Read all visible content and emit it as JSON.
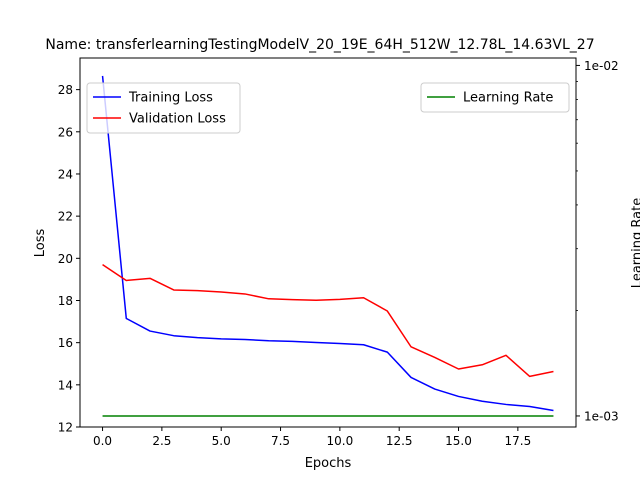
{
  "chart_data": {
    "type": "line",
    "title": "Name: transferlearningTestingModelV_20_19E_64H_512W_12.78L_14.63VL_27",
    "xlabel": "Epochs",
    "ylabel": "Loss",
    "y2label": "Learning Rate",
    "x": [
      0,
      1,
      2,
      3,
      4,
      5,
      6,
      7,
      8,
      9,
      10,
      11,
      12,
      13,
      14,
      15,
      16,
      17,
      18,
      19
    ],
    "xlim": [
      -0.95,
      19.95
    ],
    "ylim": [
      12.0,
      29.5
    ],
    "xticks": [
      0,
      2.5,
      5,
      7.5,
      10,
      12.5,
      15,
      17.5
    ],
    "xtick_labels": [
      "0.0",
      "2.5",
      "5.0",
      "7.5",
      "10.0",
      "12.5",
      "15.0",
      "17.5"
    ],
    "yticks": [
      12,
      14,
      16,
      18,
      20,
      22,
      24,
      26,
      28
    ],
    "ytick_labels": [
      "12",
      "14",
      "16",
      "18",
      "20",
      "22",
      "24",
      "26",
      "28"
    ],
    "y2_scale": "log",
    "y2lim": [
      0.00093,
      0.0105
    ],
    "y2ticks": [
      0.001,
      0.01
    ],
    "y2tick_labels": [
      "1e-03",
      "1e-02"
    ],
    "grid": false,
    "series": [
      {
        "name": "Training Loss",
        "color": "#0000ff",
        "axis": "left",
        "values": [
          28.65,
          17.15,
          16.55,
          16.33,
          16.24,
          16.18,
          16.15,
          16.09,
          16.06,
          16.01,
          15.96,
          15.9,
          15.55,
          14.35,
          13.8,
          13.45,
          13.22,
          13.07,
          12.97,
          12.78
        ]
      },
      {
        "name": "Validation Loss",
        "color": "#ff0000",
        "axis": "left",
        "values": [
          19.7,
          18.95,
          19.05,
          18.5,
          18.47,
          18.4,
          18.31,
          18.08,
          18.04,
          18.01,
          18.05,
          18.13,
          17.5,
          15.8,
          15.3,
          14.75,
          14.95,
          15.4,
          14.4,
          14.63
        ]
      },
      {
        "name": "Learning Rate",
        "color": "#008000",
        "axis": "right",
        "values": [
          0.001,
          0.001,
          0.001,
          0.001,
          0.001,
          0.001,
          0.001,
          0.001,
          0.001,
          0.001,
          0.001,
          0.001,
          0.001,
          0.001,
          0.001,
          0.001,
          0.001,
          0.001,
          0.001,
          0.001
        ]
      }
    ],
    "legends": [
      {
        "placement": "upper-left",
        "entries": [
          "Training Loss",
          "Validation Loss"
        ]
      },
      {
        "placement": "upper-right",
        "entries": [
          "Learning Rate"
        ]
      }
    ]
  }
}
